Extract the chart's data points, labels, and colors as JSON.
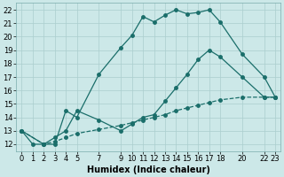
{
  "title": "",
  "xlabel": "Humidex (Indice chaleur)",
  "background_color": "#cce8e8",
  "grid_color": "#aacece",
  "line_color": "#1a6e6a",
  "xlim": [
    -0.5,
    23.5
  ],
  "ylim": [
    11.5,
    22.5
  ],
  "xticks": [
    0,
    1,
    2,
    3,
    4,
    5,
    7,
    9,
    10,
    11,
    12,
    13,
    14,
    15,
    16,
    17,
    18,
    20,
    22,
    23
  ],
  "yticks": [
    12,
    13,
    14,
    15,
    16,
    17,
    18,
    19,
    20,
    21,
    22
  ],
  "line1_x": [
    0,
    1,
    2,
    3,
    4,
    5,
    7,
    9,
    10,
    11,
    12,
    13,
    14,
    15,
    16,
    17,
    18,
    20,
    22,
    23
  ],
  "line1_y": [
    13,
    12,
    12,
    12,
    14.5,
    14,
    17.2,
    19.2,
    20.1,
    21.5,
    21.1,
    21.6,
    22,
    21.7,
    21.8,
    22,
    21.1,
    18.7,
    17,
    15.5
  ],
  "line2_x": [
    0,
    2,
    3,
    4,
    5,
    7,
    9,
    10,
    11,
    12,
    13,
    14,
    15,
    16,
    17,
    18,
    20,
    22,
    23
  ],
  "line2_y": [
    13,
    12,
    12.2,
    12.5,
    12.8,
    13.1,
    13.4,
    13.6,
    13.8,
    14.0,
    14.2,
    14.5,
    14.7,
    14.9,
    15.1,
    15.3,
    15.5,
    15.5,
    15.5
  ],
  "line3_x": [
    0,
    2,
    3,
    4,
    5,
    7,
    9,
    10,
    11,
    12,
    13,
    14,
    15,
    16,
    17,
    18,
    20,
    22,
    23
  ],
  "line3_y": [
    13,
    12,
    12.5,
    13.0,
    14.5,
    13.8,
    13.0,
    13.5,
    14.0,
    14.2,
    15.2,
    16.2,
    17.2,
    18.3,
    19.0,
    18.5,
    17.0,
    15.5,
    15.5
  ],
  "font_size_label": 7,
  "font_size_tick": 6,
  "marker_size": 2.5,
  "line_width": 0.9
}
